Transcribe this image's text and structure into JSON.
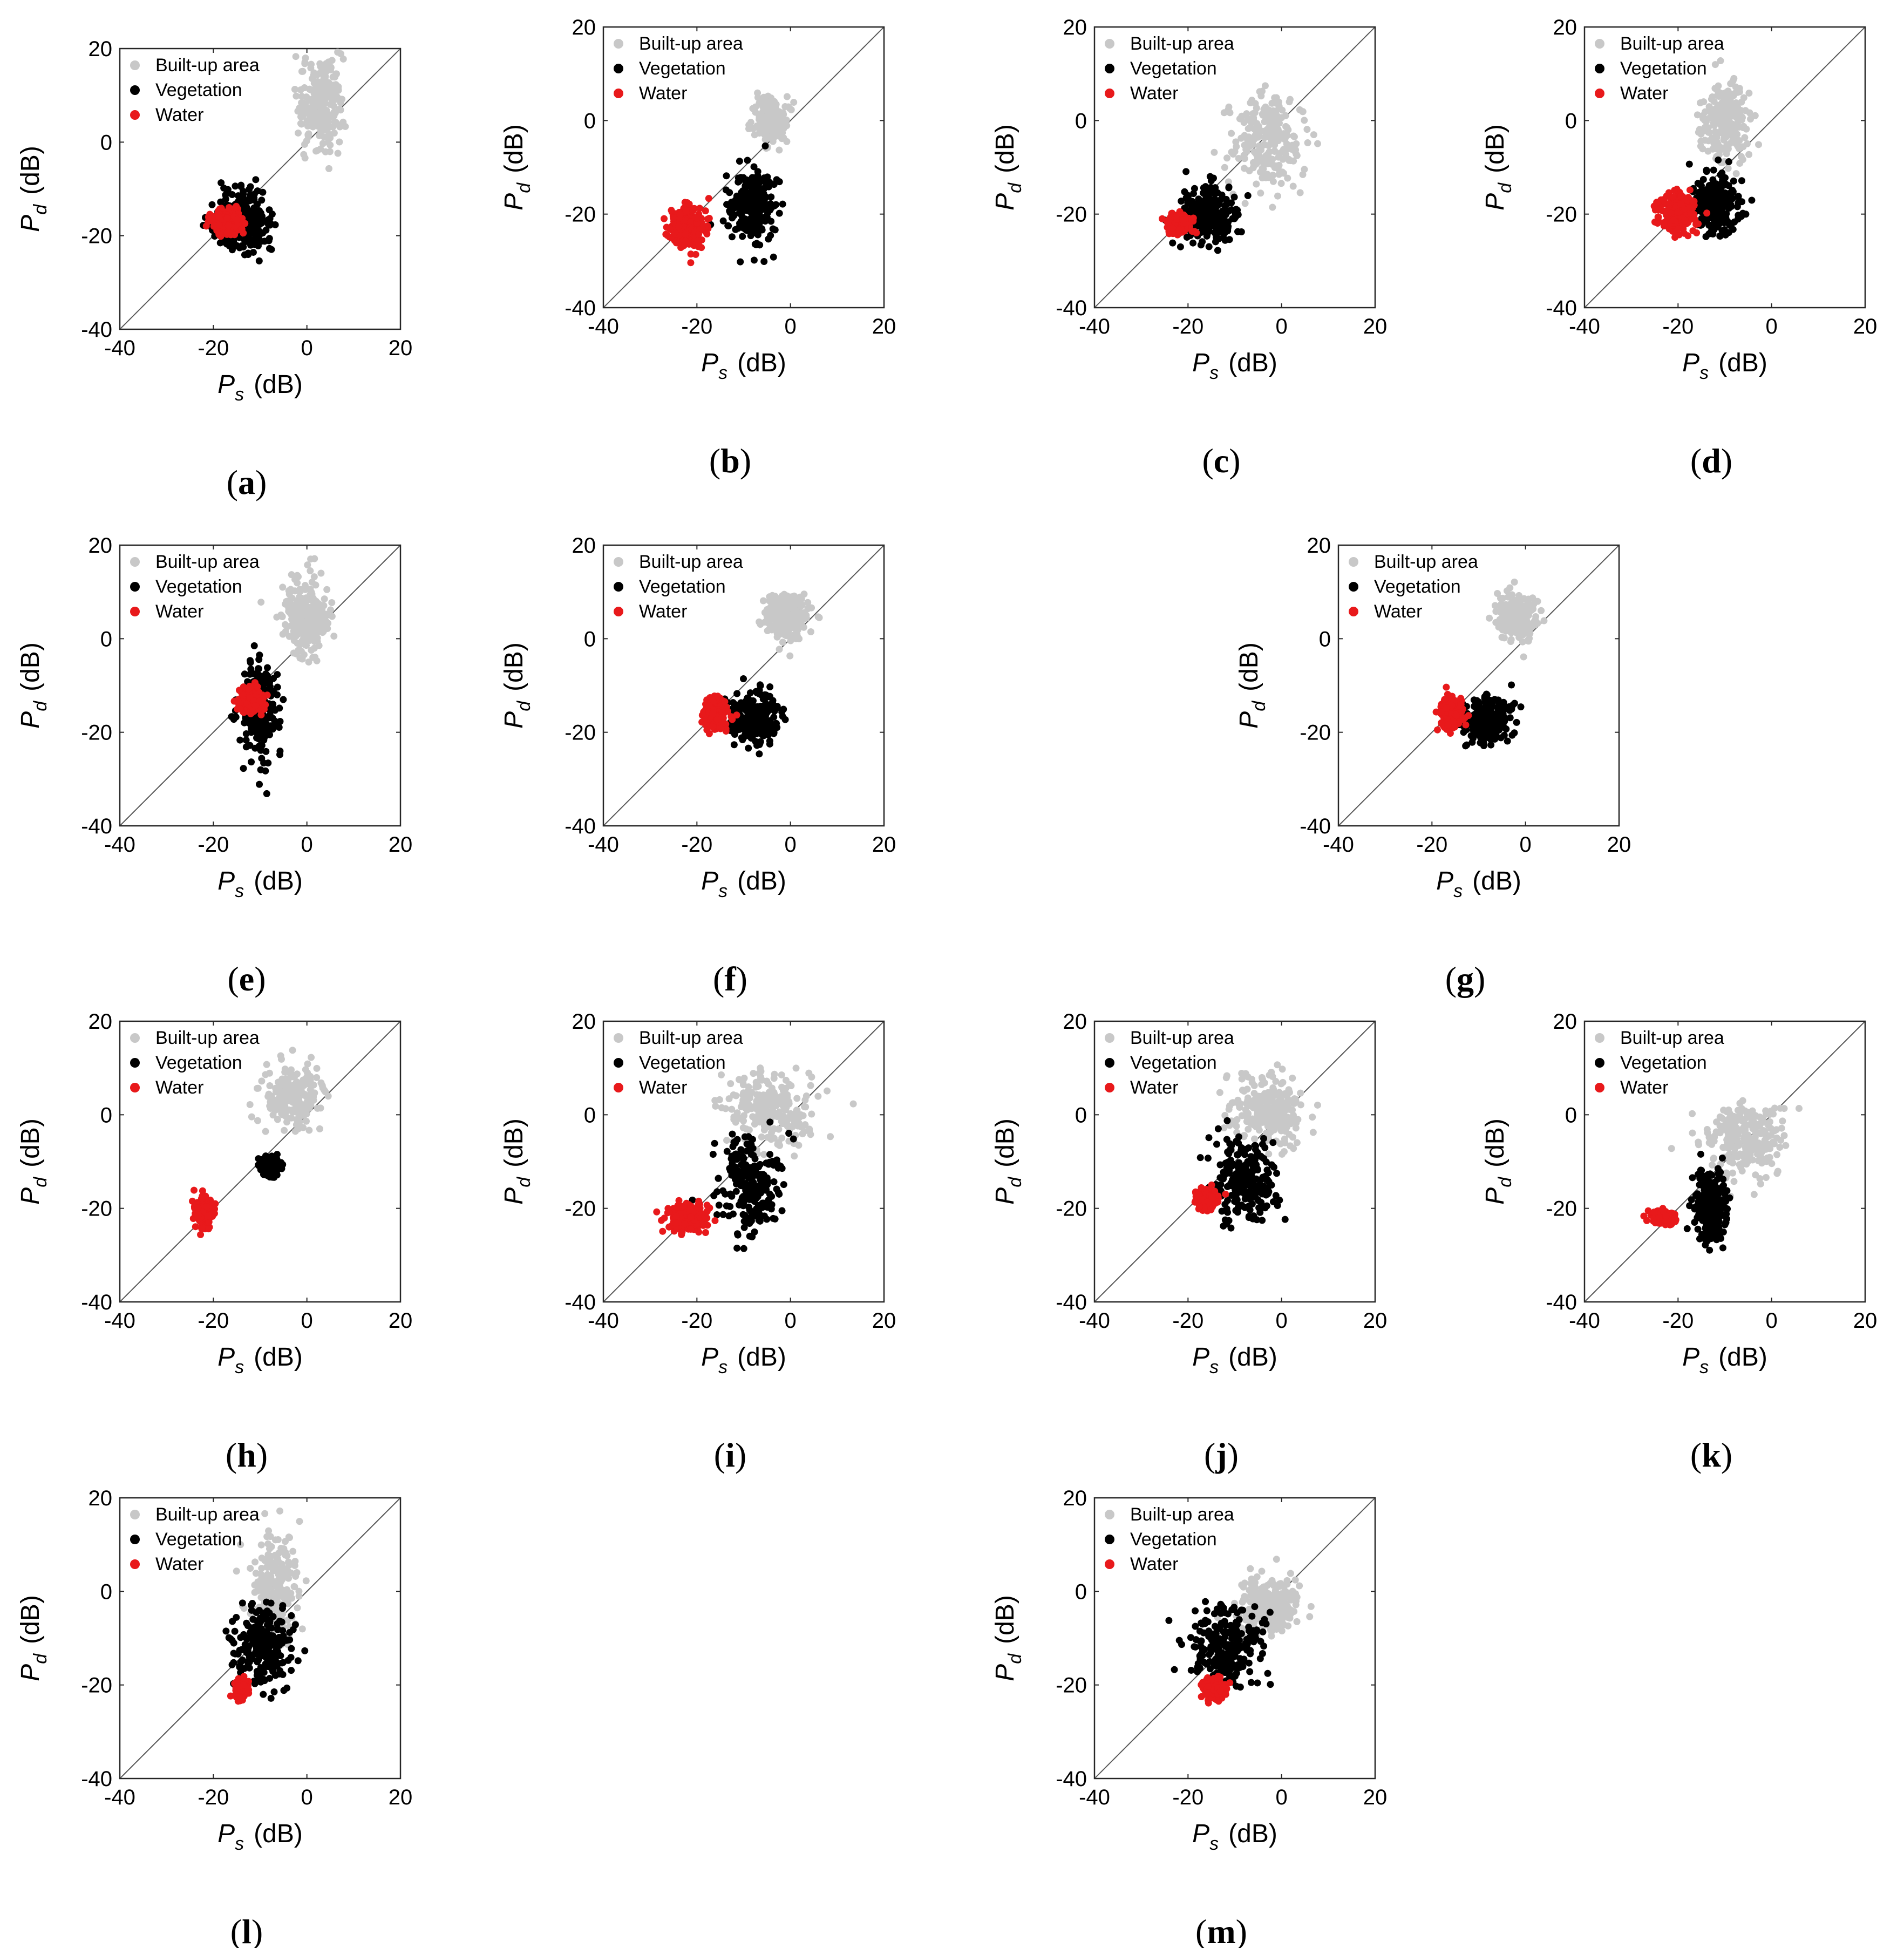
{
  "chart_data": [
    {
      "type": "scatter",
      "panel_label": "(a)",
      "xlabel": "P_s (dB)",
      "ylabel": "P_d (dB)",
      "xlabel_parts": [
        "P",
        "s",
        "(dB)"
      ],
      "ylabel_parts": [
        "P",
        "d",
        "(dB)"
      ],
      "xlim": [
        -40,
        20
      ],
      "ylim": [
        -40,
        20
      ],
      "x_ticks": [
        "-40",
        "-20",
        "0",
        "20"
      ],
      "y_ticks": [
        "-40",
        "-20",
        "0",
        "20"
      ],
      "reference_line": "y = x",
      "legend_position": "top-left",
      "legend": [
        "Built-up area",
        "Vegetation",
        "Water"
      ],
      "series": [
        {
          "name": "Built-up area",
          "color": "#c8c8c8",
          "center": [
            3,
            9
          ],
          "spread": [
            3,
            6
          ]
        },
        {
          "name": "Vegetation",
          "color": "#000000",
          "center": [
            -14,
            -17
          ],
          "spread": [
            4,
            4
          ]
        },
        {
          "name": "Water",
          "color": "#e8191b",
          "center": [
            -17,
            -17
          ],
          "spread": [
            2,
            1.5
          ]
        }
      ]
    },
    {
      "type": "scatter",
      "panel_label": "(b)",
      "xlabel": "P_s (dB)",
      "ylabel": "P_d (dB)",
      "xlabel_parts": [
        "P",
        "s",
        "(dB)"
      ],
      "ylabel_parts": [
        "P",
        "d",
        "(dB)"
      ],
      "xlim": [
        -40,
        20
      ],
      "ylim": [
        -40,
        20
      ],
      "x_ticks": [
        "-40",
        "-20",
        "0",
        "20"
      ],
      "y_ticks": [
        "-40",
        "-20",
        "0",
        "20"
      ],
      "reference_line": "y = x",
      "legend_position": "top-left",
      "legend": [
        "Built-up area",
        "Vegetation",
        "Water"
      ],
      "series": [
        {
          "name": "Built-up area",
          "color": "#c8c8c8",
          "center": [
            -4,
            0
          ],
          "spread": [
            2,
            3
          ]
        },
        {
          "name": "Vegetation",
          "color": "#000000",
          "center": [
            -8,
            -18
          ],
          "spread": [
            3,
            5
          ]
        },
        {
          "name": "Water",
          "color": "#e8191b",
          "center": [
            -22,
            -23
          ],
          "spread": [
            2.5,
            3
          ]
        }
      ]
    },
    {
      "type": "scatter",
      "panel_label": "(c)",
      "xlabel": "P_s (dB)",
      "ylabel": "P_d (dB)",
      "xlabel_parts": [
        "P",
        "s",
        "(dB)"
      ],
      "ylabel_parts": [
        "P",
        "d",
        "(dB)"
      ],
      "xlim": [
        -40,
        20
      ],
      "ylim": [
        -40,
        20
      ],
      "x_ticks": [
        "-40",
        "-20",
        "0",
        "20"
      ],
      "y_ticks": [
        "-40",
        "-20",
        "0",
        "20"
      ],
      "reference_line": "y = x",
      "legend_position": "top-left",
      "legend": [
        "Built-up area",
        "Vegetation",
        "Water"
      ],
      "series": [
        {
          "name": "Built-up area",
          "color": "#c8c8c8",
          "center": [
            -3,
            -5
          ],
          "spread": [
            5,
            6
          ]
        },
        {
          "name": "Vegetation",
          "color": "#000000",
          "center": [
            -16,
            -20
          ],
          "spread": [
            4,
            4
          ]
        },
        {
          "name": "Water",
          "color": "#e8191b",
          "center": [
            -22,
            -22
          ],
          "spread": [
            1.5,
            1.2
          ]
        }
      ]
    },
    {
      "type": "scatter",
      "panel_label": "(d)",
      "xlabel": "P_s (dB)",
      "ylabel": "P_d (dB)",
      "xlabel_parts": [
        "P",
        "s",
        "(dB)"
      ],
      "ylabel_parts": [
        "P",
        "d",
        "(dB)"
      ],
      "xlim": [
        -40,
        20
      ],
      "ylim": [
        -40,
        20
      ],
      "x_ticks": [
        "-40",
        "-20",
        "0",
        "20"
      ],
      "y_ticks": [
        "-40",
        "-20",
        "0",
        "20"
      ],
      "reference_line": "y = x",
      "legend_position": "top-left",
      "legend": [
        "Built-up area",
        "Vegetation",
        "Water"
      ],
      "series": [
        {
          "name": "Built-up area",
          "color": "#c8c8c8",
          "center": [
            -10,
            0
          ],
          "spread": [
            3,
            5
          ]
        },
        {
          "name": "Vegetation",
          "color": "#000000",
          "center": [
            -12,
            -18
          ],
          "spread": [
            3,
            4
          ]
        },
        {
          "name": "Water",
          "color": "#e8191b",
          "center": [
            -20,
            -20
          ],
          "spread": [
            2.5,
            2.5
          ]
        }
      ]
    },
    {
      "type": "scatter",
      "panel_label": "(e)",
      "xlabel": "P_s (dB)",
      "ylabel": "P_d (dB)",
      "xlabel_parts": [
        "P",
        "s",
        "(dB)"
      ],
      "ylabel_parts": [
        "P",
        "d",
        "(dB)"
      ],
      "xlim": [
        -40,
        20
      ],
      "ylim": [
        -40,
        20
      ],
      "x_ticks": [
        "-40",
        "-20",
        "0",
        "20"
      ],
      "y_ticks": [
        "-40",
        "-20",
        "0",
        "20"
      ],
      "reference_line": "y = x",
      "legend_position": "top-left",
      "legend": [
        "Built-up area",
        "Vegetation",
        "Water"
      ],
      "series": [
        {
          "name": "Built-up area",
          "color": "#c8c8c8",
          "center": [
            0,
            5
          ],
          "spread": [
            3,
            5
          ]
        },
        {
          "name": "Vegetation",
          "color": "#000000",
          "center": [
            -10,
            -15
          ],
          "spread": [
            2.5,
            6
          ]
        },
        {
          "name": "Water",
          "color": "#e8191b",
          "center": [
            -12,
            -13
          ],
          "spread": [
            1.5,
            1.5
          ]
        }
      ]
    },
    {
      "type": "scatter",
      "panel_label": "(f)",
      "xlabel": "P_s (dB)",
      "ylabel": "P_d (dB)",
      "xlabel_parts": [
        "P",
        "s",
        "(dB)"
      ],
      "ylabel_parts": [
        "P",
        "d",
        "(dB)"
      ],
      "xlim": [
        -40,
        20
      ],
      "ylim": [
        -40,
        20
      ],
      "x_ticks": [
        "-40",
        "-20",
        "0",
        "20"
      ],
      "y_ticks": [
        "-40",
        "-20",
        "0",
        "20"
      ],
      "reference_line": "y = x",
      "legend_position": "top-left",
      "legend": [
        "Built-up area",
        "Vegetation",
        "Water"
      ],
      "series": [
        {
          "name": "Built-up area",
          "color": "#c8c8c8",
          "center": [
            -1,
            5
          ],
          "spread": [
            3,
            3
          ]
        },
        {
          "name": "Vegetation",
          "color": "#000000",
          "center": [
            -8,
            -17
          ],
          "spread": [
            3.5,
            3.5
          ]
        },
        {
          "name": "Water",
          "color": "#e8191b",
          "center": [
            -16,
            -16
          ],
          "spread": [
            1.5,
            2
          ]
        }
      ]
    },
    {
      "type": "scatter",
      "panel_label": "(g)",
      "xlabel": "P_s (dB)",
      "ylabel": "P_d (dB)",
      "xlabel_parts": [
        "P",
        "s",
        "(dB)"
      ],
      "ylabel_parts": [
        "P",
        "d",
        "(dB)"
      ],
      "xlim": [
        -40,
        20
      ],
      "ylim": [
        -40,
        20
      ],
      "x_ticks": [
        "-40",
        "-20",
        "0",
        "20"
      ],
      "y_ticks": [
        "-40",
        "-20",
        "0",
        "20"
      ],
      "reference_line": "y = x",
      "legend_position": "top-left",
      "legend": [
        "Built-up area",
        "Vegetation",
        "Water"
      ],
      "series": [
        {
          "name": "Built-up area",
          "color": "#c8c8c8",
          "center": [
            -2,
            5
          ],
          "spread": [
            2.5,
            3
          ]
        },
        {
          "name": "Vegetation",
          "color": "#000000",
          "center": [
            -8,
            -17
          ],
          "spread": [
            3,
            3
          ]
        },
        {
          "name": "Water",
          "color": "#e8191b",
          "center": [
            -16,
            -16
          ],
          "spread": [
            1.5,
            2
          ]
        }
      ]
    },
    {
      "type": "scatter",
      "panel_label": "(h)",
      "xlabel": "P_s (dB)",
      "ylabel": "P_d (dB)",
      "xlabel_parts": [
        "P",
        "s",
        "(dB)"
      ],
      "ylabel_parts": [
        "P",
        "d",
        "(dB)"
      ],
      "xlim": [
        -40,
        20
      ],
      "ylim": [
        -40,
        20
      ],
      "x_ticks": [
        "-40",
        "-20",
        "0",
        "20"
      ],
      "y_ticks": [
        "-40",
        "-20",
        "0",
        "20"
      ],
      "reference_line": "y = x",
      "legend_position": "top-left",
      "legend": [
        "Built-up area",
        "Vegetation",
        "Water"
      ],
      "series": [
        {
          "name": "Built-up area",
          "color": "#c8c8c8",
          "center": [
            -3,
            4
          ],
          "spread": [
            4,
            4
          ]
        },
        {
          "name": "Vegetation",
          "color": "#000000",
          "center": [
            -8,
            -11
          ],
          "spread": [
            1.2,
            1.2
          ]
        },
        {
          "name": "Water",
          "color": "#e8191b",
          "center": [
            -22,
            -21
          ],
          "spread": [
            1.2,
            1.8
          ]
        }
      ]
    },
    {
      "type": "scatter",
      "panel_label": "(i)",
      "xlabel": "P_s (dB)",
      "ylabel": "P_d (dB)",
      "xlabel_parts": [
        "P",
        "s",
        "(dB)"
      ],
      "ylabel_parts": [
        "P",
        "d",
        "(dB)"
      ],
      "xlim": [
        -40,
        20
      ],
      "ylim": [
        -40,
        20
      ],
      "x_ticks": [
        "-40",
        "-20",
        "0",
        "20"
      ],
      "y_ticks": [
        "-40",
        "-20",
        "0",
        "20"
      ],
      "reference_line": "y = x",
      "legend_position": "top-left",
      "legend": [
        "Built-up area",
        "Vegetation",
        "Water"
      ],
      "series": [
        {
          "name": "Built-up area",
          "color": "#c8c8c8",
          "center": [
            -4,
            1
          ],
          "spread": [
            6,
            5
          ]
        },
        {
          "name": "Vegetation",
          "color": "#000000",
          "center": [
            -9,
            -15
          ],
          "spread": [
            4,
            6
          ]
        },
        {
          "name": "Water",
          "color": "#e8191b",
          "center": [
            -22,
            -22
          ],
          "spread": [
            2.5,
            1.8
          ]
        }
      ]
    },
    {
      "type": "scatter",
      "panel_label": "(j)",
      "xlabel": "P_s (dB)",
      "ylabel": "P_d (dB)",
      "xlabel_parts": [
        "P",
        "s",
        "(dB)"
      ],
      "ylabel_parts": [
        "P",
        "d",
        "(dB)"
      ],
      "xlim": [
        -40,
        20
      ],
      "ylim": [
        -40,
        20
      ],
      "x_ticks": [
        "-40",
        "-20",
        "0",
        "20"
      ],
      "y_ticks": [
        "-40",
        "-20",
        "0",
        "20"
      ],
      "reference_line": "y = x",
      "legend_position": "top-left",
      "legend": [
        "Built-up area",
        "Vegetation",
        "Water"
      ],
      "series": [
        {
          "name": "Built-up area",
          "color": "#c8c8c8",
          "center": [
            -3,
            0
          ],
          "spread": [
            5,
            5
          ]
        },
        {
          "name": "Vegetation",
          "color": "#000000",
          "center": [
            -8,
            -14
          ],
          "spread": [
            4,
            6
          ]
        },
        {
          "name": "Water",
          "color": "#e8191b",
          "center": [
            -16,
            -18
          ],
          "spread": [
            1.3,
            1.2
          ]
        }
      ]
    },
    {
      "type": "scatter",
      "panel_label": "(k)",
      "xlabel": "P_s (dB)",
      "ylabel": "P_d (dB)",
      "xlabel_parts": [
        "P",
        "s",
        "(dB)"
      ],
      "ylabel_parts": [
        "P",
        "d",
        "(dB)"
      ],
      "xlim": [
        -40,
        20
      ],
      "ylim": [
        -40,
        20
      ],
      "x_ticks": [
        "-40",
        "-20",
        "0",
        "20"
      ],
      "y_ticks": [
        "-40",
        "-20",
        "0",
        "20"
      ],
      "reference_line": "y = x",
      "legend_position": "top-left",
      "legend": [
        "Built-up area",
        "Vegetation",
        "Water"
      ],
      "series": [
        {
          "name": "Built-up area",
          "color": "#c8c8c8",
          "center": [
            -6,
            -5
          ],
          "spread": [
            5,
            5
          ]
        },
        {
          "name": "Vegetation",
          "color": "#000000",
          "center": [
            -13,
            -20
          ],
          "spread": [
            2,
            5
          ]
        },
        {
          "name": "Water",
          "color": "#e8191b",
          "center": [
            -23,
            -22
          ],
          "spread": [
            1.5,
            0.8
          ]
        }
      ]
    },
    {
      "type": "scatter",
      "panel_label": "(l)",
      "xlabel": "P_s (dB)",
      "ylabel": "P_d (dB)",
      "xlabel_parts": [
        "P",
        "s",
        "(dB)"
      ],
      "ylabel_parts": [
        "P",
        "d",
        "(dB)"
      ],
      "xlim": [
        -40,
        20
      ],
      "ylim": [
        -40,
        20
      ],
      "x_ticks": [
        "-40",
        "-20",
        "0",
        "20"
      ],
      "y_ticks": [
        "-40",
        "-20",
        "0",
        "20"
      ],
      "reference_line": "y = x",
      "legend_position": "top-left",
      "legend": [
        "Built-up area",
        "Vegetation",
        "Water"
      ],
      "series": [
        {
          "name": "Built-up area",
          "color": "#c8c8c8",
          "center": [
            -7,
            0
          ],
          "spread": [
            3,
            7
          ]
        },
        {
          "name": "Vegetation",
          "color": "#000000",
          "center": [
            -9,
            -12
          ],
          "spread": [
            4,
            5
          ]
        },
        {
          "name": "Water",
          "color": "#e8191b",
          "center": [
            -14,
            -21
          ],
          "spread": [
            0.8,
            1.3
          ]
        }
      ]
    },
    {
      "type": "scatter",
      "panel_label": "(m)",
      "xlabel": "P_s (dB)",
      "ylabel": "P_d (dB)",
      "xlabel_parts": [
        "P",
        "s",
        "(dB)"
      ],
      "ylabel_parts": [
        "P",
        "d",
        "(dB)"
      ],
      "xlim": [
        -40,
        20
      ],
      "ylim": [
        -40,
        20
      ],
      "x_ticks": [
        "-40",
        "-20",
        "0",
        "20"
      ],
      "y_ticks": [
        "-40",
        "-20",
        "0",
        "20"
      ],
      "reference_line": "y = x",
      "legend_position": "top-left",
      "legend": [
        "Built-up area",
        "Vegetation",
        "Water"
      ],
      "series": [
        {
          "name": "Built-up area",
          "color": "#c8c8c8",
          "center": [
            -3,
            -3
          ],
          "spread": [
            4,
            4
          ]
        },
        {
          "name": "Vegetation",
          "color": "#000000",
          "center": [
            -12,
            -12
          ],
          "spread": [
            5,
            5
          ]
        },
        {
          "name": "Water",
          "color": "#e8191b",
          "center": [
            -14,
            -21
          ],
          "spread": [
            1.5,
            1.2
          ]
        }
      ]
    }
  ]
}
